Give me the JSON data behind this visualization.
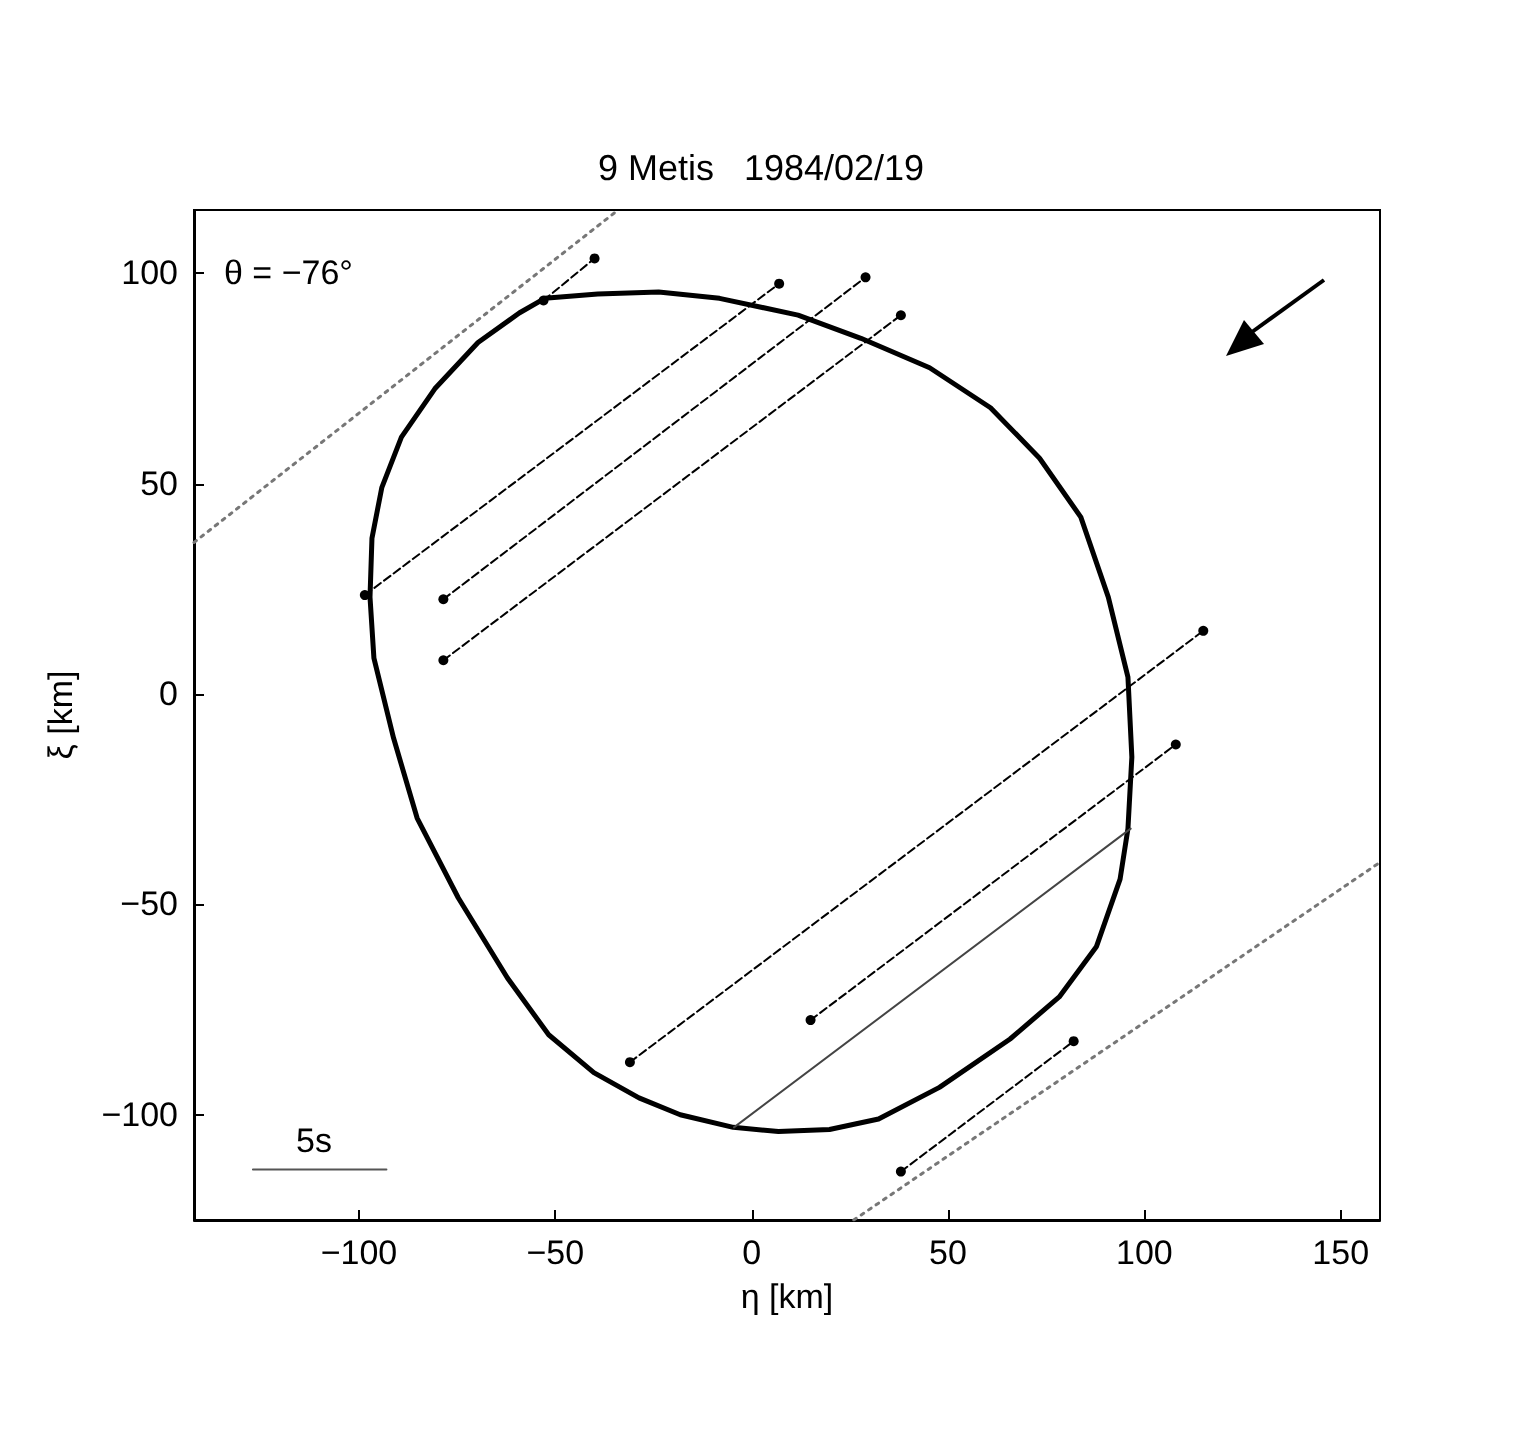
{
  "chart_data": {
    "type": "line",
    "title": "9 Metis   1984/02/19",
    "xlabel": "η [km]",
    "ylabel": "ξ [km]",
    "xlim": [
      -142,
      160
    ],
    "ylim": [
      -125,
      115
    ],
    "xticks": [
      -100,
      -50,
      0,
      50,
      100,
      150
    ],
    "yticks": [
      -100,
      -50,
      0,
      50,
      100
    ],
    "grid": false,
    "annotations": [
      "θ = −76°",
      "5s"
    ],
    "series": [
      {
        "color": "#000000",
        "line_style": "dashed",
        "marker": "circle",
        "x": [
          -53,
          -40
        ],
        "values": [
          93.5,
          103.5
        ]
      },
      {
        "color": "#000000",
        "line_style": "dashed",
        "marker": "circle",
        "x": [
          -98.5,
          7
        ],
        "values": [
          23.5,
          97.5
        ]
      },
      {
        "color": "#000000",
        "line_style": "dashed",
        "marker": "circle",
        "x": [
          -78.5,
          29
        ],
        "values": [
          22.5,
          99
        ]
      },
      {
        "color": "#000000",
        "line_style": "dashed",
        "marker": "circle",
        "x": [
          -78.5,
          38
        ],
        "values": [
          8,
          90
        ]
      },
      {
        "color": "#000000",
        "line_style": "dashed",
        "marker": "circle",
        "x": [
          -31,
          115
        ],
        "values": [
          -87.5,
          15
        ]
      },
      {
        "color": "#000000",
        "line_style": "dashed",
        "marker": "circle",
        "x": [
          15,
          108
        ],
        "values": [
          -77.5,
          -12
        ]
      },
      {
        "color": "#000000",
        "line_style": "dashed",
        "marker": "circle",
        "x": [
          38,
          82
        ],
        "values": [
          -113.5,
          -82.5
        ]
      },
      {
        "color": "#444444",
        "line_style": "solid",
        "marker": "none",
        "x": [
          -4.5,
          96.5
        ],
        "values": [
          -103,
          -32
        ]
      },
      {
        "color": "#777777",
        "line_style": "dotted",
        "marker": "none",
        "x": [
          -142,
          -34
        ],
        "values": [
          36,
          115
        ]
      },
      {
        "color": "#777777",
        "line_style": "dotted",
        "marker": "none",
        "x": [
          26,
          160
        ],
        "values": [
          -125,
          -40
        ]
      },
      {
        "color": "#555555",
        "line_style": "solid",
        "marker": "none",
        "x": [
          -127,
          -93
        ],
        "values": [
          -113,
          -113
        ]
      }
    ]
  }
}
